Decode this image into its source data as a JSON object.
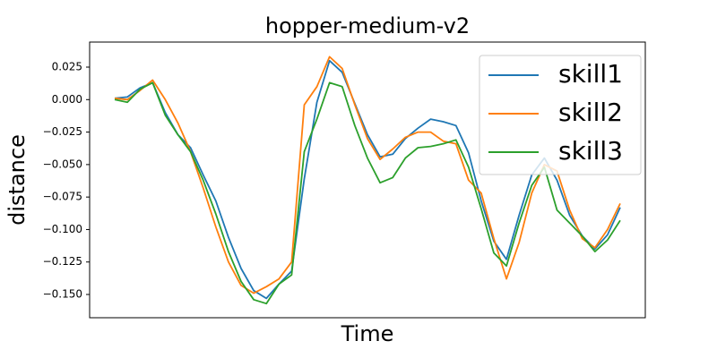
{
  "chart_data": {
    "type": "line",
    "title": "hopper-medium-v2",
    "xlabel": "Time",
    "ylabel": "distance",
    "ylim": [
      -0.1679,
      0.0443
    ],
    "yticks": [
      {
        "value": 0.025,
        "label": "0.025"
      },
      {
        "value": 0.0,
        "label": "0.000"
      },
      {
        "value": -0.025,
        "label": "−0.025"
      },
      {
        "value": -0.05,
        "label": "−0.050"
      },
      {
        "value": -0.075,
        "label": "−0.075"
      },
      {
        "value": -0.1,
        "label": "−0.100"
      },
      {
        "value": -0.125,
        "label": "−0.125"
      },
      {
        "value": -0.15,
        "label": "−0.150"
      }
    ],
    "legend": "upper right",
    "series": [
      {
        "name": "skill1",
        "color": "#1f77b4",
        "values": [
          0.001,
          0.002,
          0.009,
          0.013,
          -0.01,
          -0.027,
          -0.037,
          -0.058,
          -0.078,
          -0.106,
          -0.13,
          -0.147,
          -0.153,
          -0.142,
          -0.132,
          -0.061,
          -0.002,
          0.03,
          0.021,
          -0.003,
          -0.027,
          -0.044,
          -0.042,
          -0.03,
          -0.022,
          -0.015,
          -0.017,
          -0.02,
          -0.041,
          -0.078,
          -0.109,
          -0.123,
          -0.089,
          -0.058,
          -0.045,
          -0.062,
          -0.089,
          -0.105,
          -0.115,
          -0.104,
          -0.083
        ]
      },
      {
        "name": "skill2",
        "color": "#ff7f0e",
        "values": [
          0.001,
          0.0,
          0.007,
          0.015,
          0.0,
          -0.018,
          -0.04,
          -0.068,
          -0.098,
          -0.125,
          -0.143,
          -0.149,
          -0.144,
          -0.138,
          -0.125,
          -0.004,
          0.01,
          0.033,
          0.024,
          -0.004,
          -0.03,
          -0.046,
          -0.038,
          -0.029,
          -0.025,
          -0.025,
          -0.032,
          -0.034,
          -0.062,
          -0.072,
          -0.107,
          -0.138,
          -0.11,
          -0.072,
          -0.05,
          -0.055,
          -0.085,
          -0.107,
          -0.114,
          -0.1,
          -0.08
        ]
      },
      {
        "name": "skill3",
        "color": "#2ca02c",
        "values": [
          0.0,
          -0.002,
          0.008,
          0.013,
          -0.012,
          -0.027,
          -0.04,
          -0.062,
          -0.088,
          -0.117,
          -0.14,
          -0.154,
          -0.157,
          -0.142,
          -0.135,
          -0.04,
          -0.015,
          0.013,
          0.01,
          -0.02,
          -0.045,
          -0.064,
          -0.06,
          -0.045,
          -0.037,
          -0.036,
          -0.034,
          -0.031,
          -0.052,
          -0.084,
          -0.118,
          -0.128,
          -0.095,
          -0.066,
          -0.052,
          -0.085,
          -0.095,
          -0.105,
          -0.117,
          -0.108,
          -0.093
        ]
      }
    ]
  }
}
